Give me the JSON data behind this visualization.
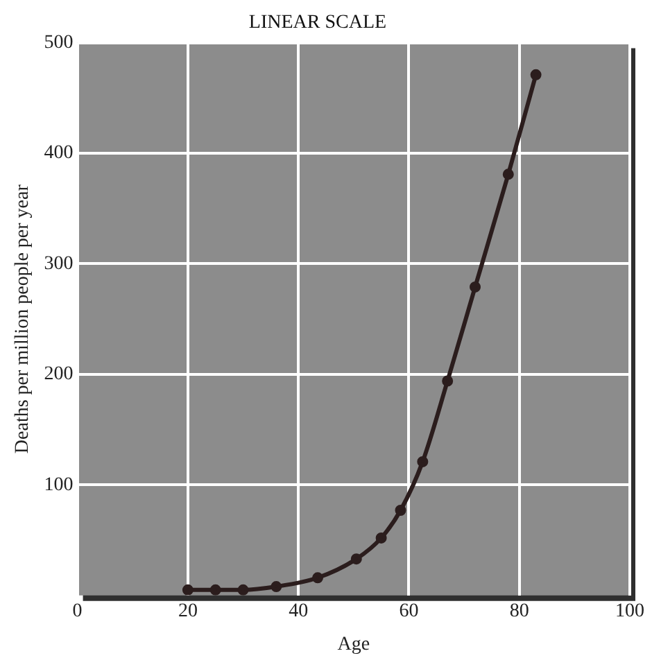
{
  "chart_data": {
    "type": "line",
    "title": "LINEAR SCALE",
    "xlabel": "Age",
    "ylabel": "Deaths per million people per year",
    "x": [
      20,
      25,
      30,
      36,
      43.5,
      50.5,
      55,
      58.5,
      62.5,
      67,
      72,
      78,
      83
    ],
    "series": [
      {
        "color": "#2b1d1d",
        "values": [
          5,
          5,
          5,
          8,
          16,
          33,
          52,
          77,
          121,
          194,
          279,
          381,
          471
        ]
      }
    ],
    "xlim": [
      0,
      100
    ],
    "xticks": [
      0,
      20,
      40,
      60,
      80,
      100
    ],
    "ylim": [
      0,
      500
    ],
    "yticks": [
      100,
      200,
      300,
      400,
      500
    ],
    "grid": true,
    "legend": false,
    "marker": "circle",
    "line_style": "solid"
  }
}
